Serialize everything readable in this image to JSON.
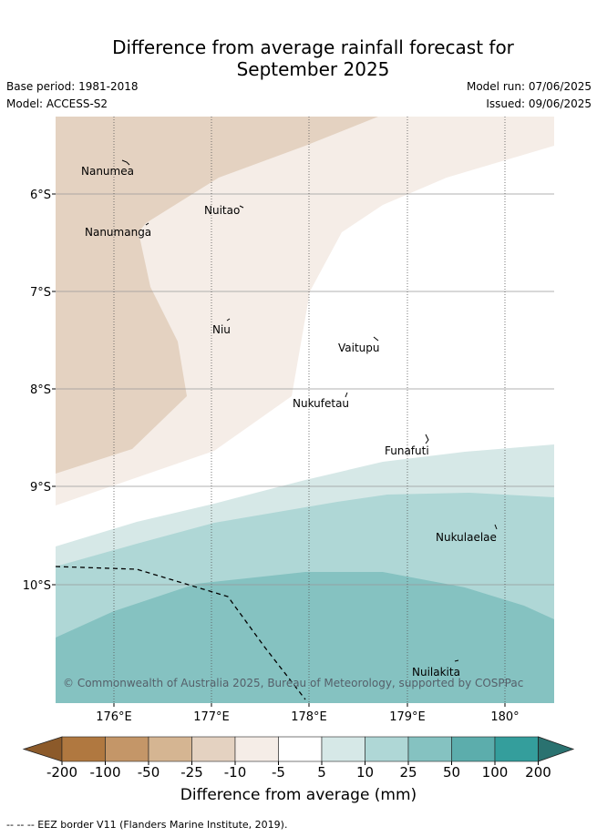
{
  "header": {
    "title_line1": "Difference from average rainfall forecast for",
    "title_line2": "September 2025",
    "base_period": "Base period: 1981-2018",
    "model": "Model: ACCESS-S2",
    "model_run": "Model run: 07/06/2025",
    "issued": "Issued: 09/06/2025"
  },
  "map": {
    "lat_labels": [
      "6°S",
      "7°S",
      "8°S",
      "9°S",
      "10°S"
    ],
    "lon_labels": [
      "176°E",
      "177°E",
      "178°E",
      "179°E",
      "180°"
    ],
    "islands": [
      {
        "name": "Nanumea"
      },
      {
        "name": "Nuitao"
      },
      {
        "name": "Nanumanga"
      },
      {
        "name": "Niu"
      },
      {
        "name": "Vaitupu"
      },
      {
        "name": "Nukufetau"
      },
      {
        "name": "Funafuti"
      },
      {
        "name": "Nukulaelae"
      },
      {
        "name": "Nuilakita"
      }
    ],
    "copyright": "© Commonwealth of Australia 2025, Bureau of Meteorology, supported by COSPPac"
  },
  "colorbar": {
    "ticks": [
      "-200",
      "-100",
      "-50",
      "-25",
      "-10",
      "-5",
      "5",
      "10",
      "25",
      "50",
      "100",
      "200"
    ],
    "colors": [
      "#8c5a2a",
      "#b07840",
      "#c49668",
      "#d5b592",
      "#e4d2c1",
      "#f5ede7",
      "#ffffff",
      "#d6e8e7",
      "#afd7d6",
      "#85c2c1",
      "#5cadac",
      "#349e9c",
      "#2a7270"
    ],
    "label": "Difference from average (mm)"
  },
  "footnote": "--  --  -- EEZ border V11 (Flanders Marine Institute, 2019)."
}
